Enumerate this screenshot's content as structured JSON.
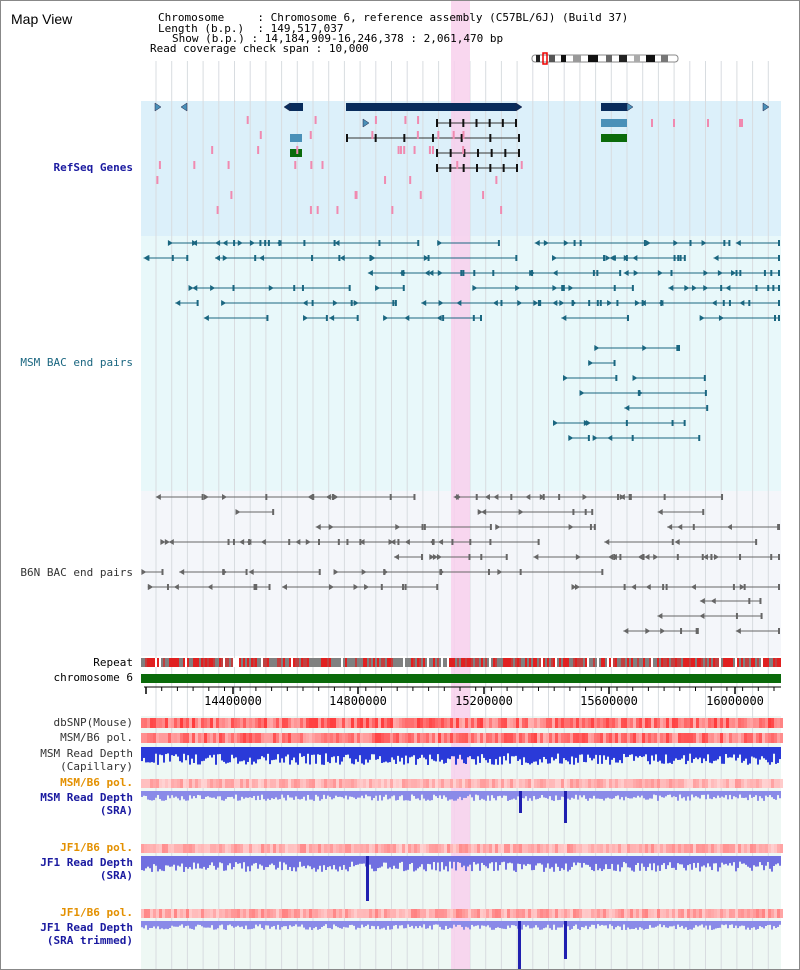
{
  "title": "Map View",
  "header": {
    "chromosome_label": "Chromosome",
    "chromosome_value": "Chromosome 6, reference assembly (C57BL/6J) (Build 37)",
    "length_label": "Length (b.p.)",
    "length_value": "149,517,037",
    "show_label": "Show (b.p.)",
    "show_value": "14,184,909-16,246,378 : 2,061,470 bp",
    "coverage_label": "Read coverage check span",
    "coverage_value": "10,000"
  },
  "tracks": {
    "refseq": "RefSeq Genes",
    "msm_bac": "MSM BAC end pairs",
    "b6n_bac": "B6N BAC end pairs",
    "repeat": "Repeat",
    "chromosome": "chromosome 6"
  },
  "axis": {
    "ticks": [
      "14400000",
      "14800000",
      "15200000",
      "15600000",
      "16000000"
    ]
  },
  "lower_tracks": {
    "dbsnp": "dbSNP(Mouse)",
    "msm_b6_pol_1": "MSM/B6 pol.",
    "msm_read_depth_cap_1": "MSM Read Depth",
    "msm_read_depth_cap_2": "(Capillary)",
    "msm_b6_pol_2": "MSM/B6 pol.",
    "msm_read_depth_sra_1": "MSM Read Depth",
    "msm_read_depth_sra_2": "(SRA)",
    "jf1_b6_pol_1": "JF1/B6 pol.",
    "jf1_read_depth_sra_1": "JF1 Read Depth",
    "jf1_read_depth_sra_2": "(SRA)",
    "jf1_b6_pol_2": "JF1/B6 pol.",
    "jf1_read_depth_trim_1": "JF1 Read Depth",
    "jf1_read_depth_trim_2": "(SRA trimmed)"
  },
  "colors": {
    "refseq_bg": "#dcf0fa",
    "msm_bg": "#e8f8fa",
    "b6n_bg": "#f4f6fa",
    "highlight": "#f8d0ec",
    "navy": "#082c5c",
    "steel": "#4a90b8",
    "green": "#0b6b0b",
    "pink": "#f08ab0",
    "msm_pair": "#1a6680",
    "b6n_pair": "#666666",
    "label_blue": "#1a1aa0",
    "label_orange": "#e39000"
  }
}
